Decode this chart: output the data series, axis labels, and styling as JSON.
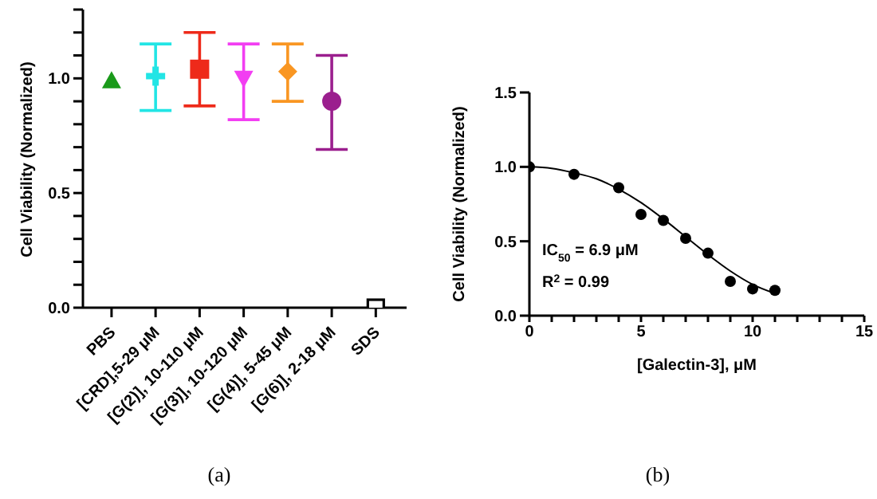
{
  "chart_data": [
    {
      "type": "scatter",
      "categories": [
        "PBS",
        "[CRD],5-29 μM",
        "[G(2)], 10-110 μM",
        "[G(3)], 10-120 μM",
        "[G(4)], 5-45 μM",
        "[G(6)], 2-18 μM",
        "SDS"
      ],
      "ylabel": "Cell Viability (Normalized)",
      "ylim": [
        0,
        1.3
      ],
      "yticks": [
        {
          "value": 0,
          "label": "0.0"
        },
        {
          "value": 0.1,
          "label": null
        },
        {
          "value": 0.2,
          "label": null
        },
        {
          "value": 0.3,
          "label": null
        },
        {
          "value": 0.4,
          "label": null
        },
        {
          "value": 0.5,
          "label": "0.5"
        },
        {
          "value": 0.6,
          "label": null
        },
        {
          "value": 0.7,
          "label": null
        },
        {
          "value": 0.8,
          "label": null
        },
        {
          "value": 0.9,
          "label": null
        },
        {
          "value": 1.0,
          "label": "1.0"
        },
        {
          "value": 1.1,
          "label": null
        },
        {
          "value": 1.2,
          "label": null
        },
        {
          "value": 1.3,
          "label": null
        }
      ],
      "annotations": [
        "(a)"
      ],
      "series": [
        {
          "x": [
            "PBS"
          ],
          "values": [
            0.99
          ],
          "color": "#1a9a1a",
          "marker": "triangle"
        },
        {
          "x": [
            "[CRD],5-29 μM"
          ],
          "values": [
            1.01
          ],
          "color": "#22e5e5",
          "marker": "cross",
          "errors": [
            [
              0.86,
              1.15
            ]
          ]
        },
        {
          "x": [
            "[G(2)], 10-110 μM"
          ],
          "values": [
            1.04
          ],
          "color": "#ee2a1a",
          "marker": "square",
          "errors": [
            [
              0.88,
              1.2
            ]
          ]
        },
        {
          "x": [
            "[G(3)], 10-120 μM"
          ],
          "values": [
            1.0
          ],
          "color": "#f23ef2",
          "marker": "triangle-down",
          "errors": [
            [
              0.82,
              1.15
            ]
          ]
        },
        {
          "x": [
            "[G(4)], 5-45 μM"
          ],
          "values": [
            1.03
          ],
          "color": "#f99622",
          "marker": "diamond",
          "errors": [
            [
              0.9,
              1.15
            ]
          ]
        },
        {
          "x": [
            "[G(6)], 2-18 μM"
          ],
          "values": [
            0.9
          ],
          "color": "#9b1f8e",
          "marker": "circle",
          "errors": [
            [
              0.69,
              1.1
            ]
          ]
        },
        {
          "x": [
            "SDS"
          ],
          "values": [
            0.0
          ],
          "color": "#000000",
          "marker": "square-open"
        }
      ]
    },
    {
      "type": "scatter",
      "xlabel": "[Galectin-3], μM",
      "ylabel": "Cell Viability (Normalized)",
      "xlim": [
        0,
        15
      ],
      "xticks": [
        0,
        {
          "value": 1,
          "label": null
        },
        {
          "value": 2,
          "label": null
        },
        {
          "value": 3,
          "label": null
        },
        {
          "value": 4,
          "label": null
        },
        5,
        {
          "value": 6,
          "label": null
        },
        {
          "value": 7,
          "label": null
        },
        {
          "value": 8,
          "label": null
        },
        {
          "value": 9,
          "label": null
        },
        10,
        {
          "value": 11,
          "label": null
        },
        {
          "value": 12,
          "label": null
        },
        {
          "value": 13,
          "label": null
        },
        {
          "value": 14,
          "label": null
        },
        15
      ],
      "ylim": [
        0,
        1.5
      ],
      "yticks": [
        {
          "value": 0,
          "label": "0.0"
        },
        {
          "value": 0.5,
          "label": "0.5"
        },
        {
          "value": 1.0,
          "label": "1.0"
        },
        {
          "value": 1.5,
          "label": "1.5"
        }
      ],
      "annotations": [
        "IC$_{50}$ = 6.9 μM",
        "R$^{2}$ = 0.99",
        "(b)"
      ],
      "series": [
        {
          "x": [
            0,
            2,
            4,
            5,
            6,
            7,
            8,
            9,
            10,
            11
          ],
          "values": [
            1.0,
            0.95,
            0.86,
            0.68,
            0.64,
            0.52,
            0.42,
            0.23,
            0.18,
            0.17
          ],
          "color": "#000000",
          "marker": "circle"
        },
        {
          "type": "line",
          "x": [
            0,
            1,
            2,
            3,
            4,
            5,
            6,
            7,
            8,
            9,
            10,
            11
          ],
          "values": [
            1.0,
            0.99,
            0.96,
            0.92,
            0.85,
            0.76,
            0.65,
            0.53,
            0.41,
            0.3,
            0.21,
            0.15
          ],
          "color": "#000000",
          "marker": "none"
        }
      ]
    }
  ]
}
